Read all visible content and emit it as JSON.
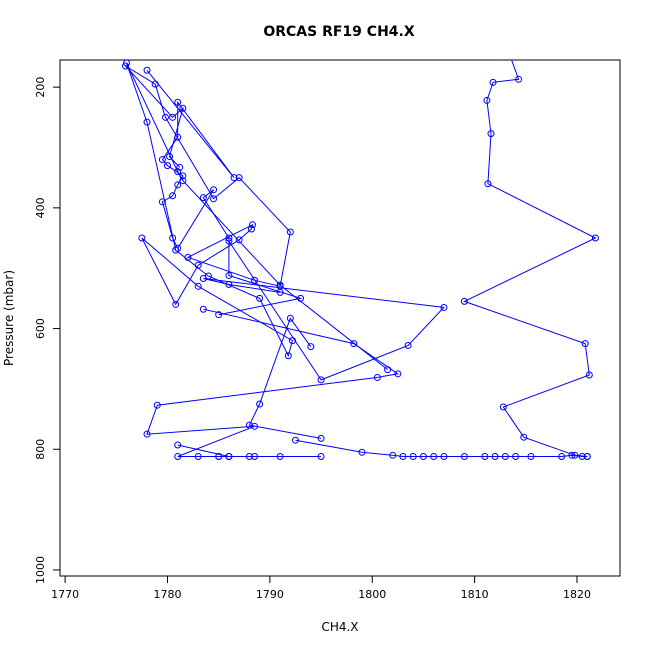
{
  "chart_data": {
    "type": "line",
    "title": "ORCAS RF19 CH4.X",
    "xlabel": "CH4.X",
    "ylabel": "Pressure (mbar)",
    "xlim": [
      1769.5,
      1824.2
    ],
    "ylim": [
      1010,
      155
    ],
    "y_inverted": true,
    "x_ticks": [
      1770,
      1780,
      1790,
      1800,
      1810,
      1820
    ],
    "y_ticks": [
      200,
      400,
      600,
      800,
      1000
    ],
    "grid": false,
    "color": "#0000ff",
    "series": [
      {
        "x": [
          1781.2,
          1780.2,
          1781.5,
          1780.5,
          1775.9,
          1778.8,
          1779.8,
          1784.5,
          1787.0,
          1792.0,
          1791.0,
          1788.5,
          1782.0,
          1788.3,
          1788.2,
          1787.0,
          1783.0,
          1780.8,
          1777.5,
          1783.0,
          1792.2,
          1791.8,
          1789.0,
          1784.0,
          1780.8,
          1778.0,
          1776.0,
          1781.0,
          1781.5,
          1791.0,
          1801.5
        ],
        "y": [
          333,
          315,
          235,
          250,
          165,
          195,
          250,
          385,
          350,
          440,
          530,
          520,
          482,
          428,
          435,
          453,
          495,
          560,
          450,
          530,
          620,
          645,
          550,
          513,
          470,
          258,
          160,
          340,
          355,
          528,
          668
        ]
      },
      {
        "x": [
          1783.5,
          1798.2,
          1802.5,
          1800.5,
          1779.0,
          1778.0,
          1788.5,
          1781.0,
          1785.0,
          1791.0,
          1795.0
        ],
        "y": [
          568,
          625,
          675,
          681,
          727,
          775,
          762,
          812,
          812,
          812,
          812
        ]
      },
      {
        "x": [
          1778.0,
          1786.5,
          1781.0,
          1781.0,
          1779.5,
          1780.0,
          1781.5,
          1781.0,
          1780.5,
          1779.5,
          1780.5,
          1781.0,
          1784.5,
          1783.5,
          1786.0,
          1786.0,
          1793.0,
          1785.0
        ],
        "y": [
          172,
          350,
          225,
          283,
          320,
          330,
          347,
          362,
          380,
          390,
          450,
          467,
          370,
          383,
          450,
          512,
          550,
          577
        ]
      },
      {
        "x": [
          1781.0,
          1786.0,
          1788.5,
          1783.0,
          1785.0,
          1786.0,
          1788.0
        ],
        "y": [
          793,
          812,
          812,
          812,
          812,
          812,
          812
        ]
      },
      {
        "x": [
          1794.0,
          1792.0,
          1789.0,
          1788.0,
          1795.0
        ],
        "y": [
          630,
          583,
          725,
          760,
          782
        ]
      },
      {
        "x": [
          1786.0,
          1795.0,
          1803.5,
          1807.0,
          1783.5,
          1786.0,
          1791.0
        ],
        "y": [
          455,
          685,
          628,
          565,
          517,
          527,
          540
        ]
      },
      {
        "x": [
          1792.5,
          1799.0,
          1802.0,
          1803.0,
          1804.0,
          1805.0,
          1806.0,
          1807.0,
          1809.0,
          1811.0,
          1812.0,
          1813.0,
          1814.0,
          1815.5,
          1818.5,
          1819.5,
          1820.5,
          1821.0
        ],
        "y": [
          785,
          805,
          810,
          812,
          812,
          812,
          812,
          812,
          812,
          812,
          812,
          812,
          812,
          812,
          812,
          810,
          812,
          812
        ]
      },
      {
        "x": [
          1813.5,
          1814.3,
          1811.8,
          1811.2,
          1811.6,
          1811.3,
          1821.8,
          1809.0,
          1820.8,
          1821.2,
          1812.8,
          1814.8,
          1819.8,
          1821.0
        ],
        "y": [
          150,
          187,
          192,
          222,
          277,
          360,
          450,
          555,
          625,
          677,
          730,
          780,
          810,
          812
        ]
      }
    ]
  }
}
